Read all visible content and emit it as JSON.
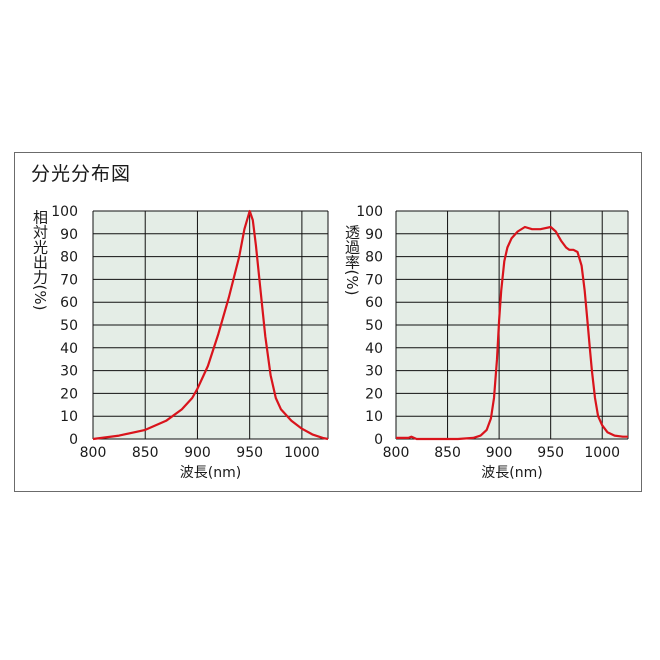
{
  "panel_title": "分光分布図",
  "colors": {
    "plot_bg": "#e4ede6",
    "grid": "#111111",
    "curve": "#d9141c"
  },
  "chart_data": [
    {
      "type": "line",
      "xlabel": "波長(nm)",
      "ylabel": "相対光出力(%)",
      "xlim": [
        800,
        1025
      ],
      "ylim": [
        0,
        100
      ],
      "xticks": [
        800,
        850,
        900,
        950,
        1000
      ],
      "yticks": [
        0,
        10,
        20,
        30,
        40,
        50,
        60,
        70,
        80,
        90,
        100
      ],
      "grid": true,
      "series": [
        {
          "x": [
            800,
            825,
            850,
            870,
            885,
            895,
            900,
            910,
            920,
            930,
            940,
            945,
            950,
            953,
            956,
            960,
            965,
            970,
            975,
            980,
            990,
            1000,
            1010,
            1020,
            1025
          ],
          "y": [
            0,
            1.5,
            4,
            8,
            13,
            18,
            22,
            32,
            46,
            62,
            80,
            92,
            100,
            96,
            85,
            67,
            45,
            28,
            18,
            13,
            8,
            4.5,
            2,
            0.5,
            0
          ]
        }
      ]
    },
    {
      "type": "line",
      "xlabel": "波長(nm)",
      "ylabel": "透過率(%)",
      "xlim": [
        800,
        1025
      ],
      "ylim": [
        0,
        100
      ],
      "xticks": [
        800,
        850,
        900,
        950,
        1000
      ],
      "yticks": [
        0,
        10,
        20,
        30,
        40,
        50,
        60,
        70,
        80,
        90,
        100
      ],
      "grid": true,
      "series": [
        {
          "x": [
            800,
            812,
            815,
            820,
            860,
            875,
            882,
            888,
            892,
            895,
            898,
            900,
            902,
            905,
            908,
            912,
            918,
            925,
            932,
            940,
            950,
            955,
            960,
            965,
            968,
            972,
            976,
            980,
            983,
            986,
            988,
            990,
            993,
            996,
            1000,
            1005,
            1012,
            1020,
            1025
          ],
          "y": [
            0.5,
            0.5,
            1,
            0,
            0,
            0.5,
            1.5,
            4,
            9,
            18,
            35,
            52,
            65,
            78,
            84,
            88,
            91,
            93,
            92,
            92,
            93,
            91,
            87,
            84,
            83,
            83,
            82,
            76,
            65,
            50,
            40,
            30,
            18,
            10,
            6,
            3,
            1.5,
            1,
            1
          ]
        }
      ]
    }
  ]
}
